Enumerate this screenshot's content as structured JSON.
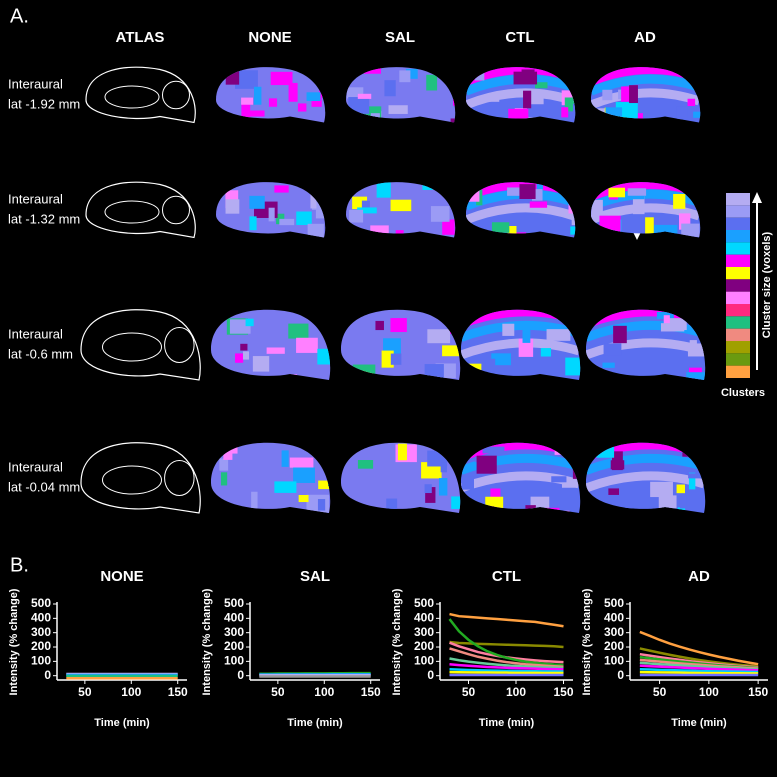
{
  "panel_a": {
    "label": "A.",
    "columns": [
      "ATLAS",
      "NONE",
      "SAL",
      "CTL",
      "AD"
    ],
    "rows": [
      [
        "Interaural",
        "lat -1.92 mm"
      ],
      [
        "Interaural",
        "lat -1.32 mm"
      ],
      [
        "Interaural",
        "lat -0.6 mm"
      ],
      [
        "Interaural",
        "lat -0.04 mm"
      ]
    ],
    "colorbar": {
      "colors": [
        "#b4acf2",
        "#9b9bf5",
        "#5b6ff0",
        "#1aa0ff",
        "#00d8ff",
        "#ff00ff",
        "#ffff00",
        "#800080",
        "#ff80ff",
        "#ff2a80",
        "#20c080",
        "#f08a80",
        "#a0a000",
        "#6a9a10",
        "#ffa040"
      ],
      "axis_label": "Cluster size (voxels)",
      "label": "Clusters"
    }
  },
  "panel_b_label": "B.",
  "chart_data": [
    {
      "type": "line",
      "title": "NONE",
      "xlabel": "Time (min)",
      "ylabel": "Intensity (% change)",
      "xlim": [
        20,
        160
      ],
      "ylim": [
        -30,
        500
      ],
      "xticks": [
        50,
        100,
        150
      ],
      "yticks": [
        0,
        100,
        200,
        300,
        400,
        500
      ],
      "x": [
        30,
        40,
        50,
        60,
        70,
        80,
        90,
        100,
        110,
        120,
        130,
        140,
        150
      ],
      "series": [
        {
          "color": "#b4acf2",
          "values": [
            12,
            12,
            12,
            12,
            12,
            12,
            12,
            12,
            12,
            12,
            12,
            12,
            12
          ]
        },
        {
          "color": "#1aa0ff",
          "values": [
            5,
            5,
            5,
            5,
            5,
            5,
            5,
            5,
            5,
            5,
            5,
            5,
            5
          ]
        },
        {
          "color": "#20c080",
          "values": [
            -2,
            -2,
            -2,
            -2,
            -2,
            -2,
            -2,
            -2,
            -2,
            -2,
            -2,
            -2,
            -2
          ]
        },
        {
          "color": "#ffa040",
          "values": [
            -18,
            -18,
            -18,
            -18,
            -18,
            -18,
            -18,
            -18,
            -18,
            -18,
            -18,
            -18,
            -18
          ]
        }
      ]
    },
    {
      "type": "line",
      "title": "SAL",
      "xlabel": "Time (min)",
      "ylabel": "Intensity (% change)",
      "xlim": [
        20,
        160
      ],
      "ylim": [
        -30,
        500
      ],
      "xticks": [
        50,
        100,
        150
      ],
      "yticks": [
        0,
        100,
        200,
        300,
        400,
        500
      ],
      "x": [
        30,
        40,
        50,
        60,
        70,
        80,
        90,
        100,
        110,
        120,
        130,
        140,
        150
      ],
      "series": [
        {
          "color": "#22aa22",
          "values": [
            14,
            14,
            15,
            15,
            15,
            16,
            16,
            16,
            17,
            17,
            18,
            18,
            18
          ]
        },
        {
          "color": "#1aa0ff",
          "values": [
            8,
            8,
            8,
            9,
            9,
            9,
            9,
            9,
            10,
            10,
            10,
            10,
            10
          ]
        },
        {
          "color": "#b4acf2",
          "values": [
            3,
            3,
            3,
            3,
            3,
            3,
            3,
            3,
            3,
            3,
            3,
            3,
            3
          ]
        },
        {
          "color": "#999999",
          "values": [
            -6,
            -6,
            -6,
            -6,
            -6,
            -6,
            -6,
            -6,
            -6,
            -6,
            -6,
            -6,
            -6
          ]
        }
      ]
    },
    {
      "type": "line",
      "title": "CTL",
      "xlabel": "Time (min)",
      "ylabel": "Intensity (% change)",
      "xlim": [
        20,
        160
      ],
      "ylim": [
        -30,
        500
      ],
      "xticks": [
        50,
        100,
        150
      ],
      "yticks": [
        0,
        100,
        200,
        300,
        400,
        500
      ],
      "x": [
        30,
        40,
        50,
        60,
        70,
        80,
        90,
        100,
        110,
        120,
        130,
        140,
        150
      ],
      "series": [
        {
          "color": "#ffa040",
          "values": [
            430,
            415,
            410,
            405,
            400,
            395,
            390,
            385,
            380,
            375,
            365,
            355,
            345
          ]
        },
        {
          "color": "#8a8a00",
          "values": [
            235,
            228,
            225,
            222,
            220,
            218,
            216,
            214,
            212,
            210,
            208,
            205,
            200
          ]
        },
        {
          "color": "#ff7fa0",
          "values": [
            230,
            205,
            185,
            165,
            150,
            138,
            128,
            120,
            113,
            107,
            102,
            98,
            95
          ]
        },
        {
          "color": "#22aa22",
          "values": [
            395,
            310,
            250,
            205,
            170,
            145,
            125,
            110,
            98,
            90,
            83,
            78,
            75
          ]
        },
        {
          "color": "#f08a80",
          "values": [
            190,
            170,
            150,
            132,
            118,
            105,
            95,
            87,
            80,
            75,
            70,
            66,
            62
          ]
        },
        {
          "color": "#66cc99",
          "values": [
            120,
            108,
            98,
            90,
            83,
            77,
            72,
            68,
            64,
            61,
            58,
            56,
            54
          ]
        },
        {
          "color": "#ff00ff",
          "values": [
            80,
            74,
            69,
            65,
            61,
            58,
            55,
            53,
            51,
            49,
            47,
            46,
            45
          ]
        },
        {
          "color": "#00ccff",
          "values": [
            45,
            42,
            40,
            38,
            36,
            35,
            34,
            33,
            32,
            31,
            30,
            30,
            29
          ]
        },
        {
          "color": "#ffff00",
          "values": [
            25,
            24,
            23,
            22,
            22,
            21,
            21,
            20,
            20,
            20,
            19,
            19,
            19
          ]
        },
        {
          "color": "#7070ff",
          "values": [
            5,
            5,
            5,
            5,
            5,
            5,
            5,
            5,
            5,
            5,
            5,
            5,
            5
          ]
        }
      ]
    },
    {
      "type": "line",
      "title": "AD",
      "xlabel": "Time (min)",
      "ylabel": "Intensity (% change)",
      "xlim": [
        20,
        160
      ],
      "ylim": [
        -30,
        500
      ],
      "xticks": [
        50,
        100,
        150
      ],
      "yticks": [
        0,
        100,
        200,
        300,
        400,
        500
      ],
      "x": [
        30,
        40,
        50,
        60,
        70,
        80,
        90,
        100,
        110,
        120,
        130,
        140,
        150
      ],
      "series": [
        {
          "color": "#ffa040",
          "values": [
            305,
            278,
            250,
            225,
            203,
            183,
            165,
            148,
            132,
            118,
            104,
            92,
            80
          ]
        },
        {
          "color": "#8a8a00",
          "values": [
            190,
            175,
            160,
            146,
            133,
            121,
            110,
            100,
            91,
            83,
            76,
            70,
            65
          ]
        },
        {
          "color": "#ff7fa0",
          "values": [
            150,
            140,
            130,
            120,
            111,
            102,
            94,
            87,
            80,
            74,
            68,
            63,
            58
          ]
        },
        {
          "color": "#22aa22",
          "values": [
            130,
            122,
            114,
            106,
            99,
            92,
            85,
            79,
            73,
            68,
            63,
            58,
            54
          ]
        },
        {
          "color": "#f08a80",
          "values": [
            110,
            104,
            98,
            92,
            86,
            81,
            76,
            71,
            66,
            62,
            58,
            54,
            50
          ]
        },
        {
          "color": "#66cc99",
          "values": [
            90,
            85,
            80,
            76,
            72,
            68,
            64,
            60,
            57,
            54,
            51,
            48,
            45
          ]
        },
        {
          "color": "#ff00ff",
          "values": [
            70,
            66,
            63,
            60,
            57,
            54,
            51,
            48,
            46,
            44,
            42,
            40,
            38
          ]
        },
        {
          "color": "#00ccff",
          "values": [
            45,
            43,
            41,
            39,
            37,
            35,
            33,
            31,
            30,
            29,
            28,
            27,
            26
          ]
        },
        {
          "color": "#ffff00",
          "values": [
            25,
            24,
            23,
            22,
            21,
            20,
            19,
            18,
            18,
            17,
            17,
            16,
            16
          ]
        },
        {
          "color": "#7070ff",
          "values": [
            5,
            5,
            5,
            5,
            5,
            5,
            5,
            5,
            5,
            5,
            5,
            5,
            5
          ]
        }
      ]
    }
  ]
}
